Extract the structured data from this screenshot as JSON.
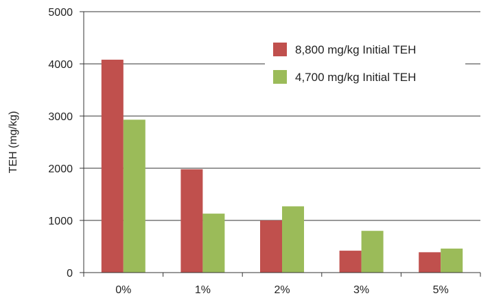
{
  "chart_data": {
    "type": "bar",
    "title": "",
    "xlabel": "",
    "ylabel": "TEH (mg/kg)",
    "ylim": [
      0,
      5000
    ],
    "yticks": [
      0,
      1000,
      2000,
      3000,
      4000,
      5000
    ],
    "categories": [
      "0%",
      "1%",
      "2%",
      "3%",
      "5%"
    ],
    "series": [
      {
        "name": "8,800 mg/kg Initial TEH",
        "color": "#c0504d",
        "values": [
          4080,
          1980,
          1000,
          420,
          390
        ]
      },
      {
        "name": "4,700 mg/kg Initial TEH",
        "color": "#9bbb59",
        "values": [
          2930,
          1130,
          1270,
          800,
          460
        ]
      }
    ],
    "grid": true,
    "legend_position": "top-right"
  }
}
